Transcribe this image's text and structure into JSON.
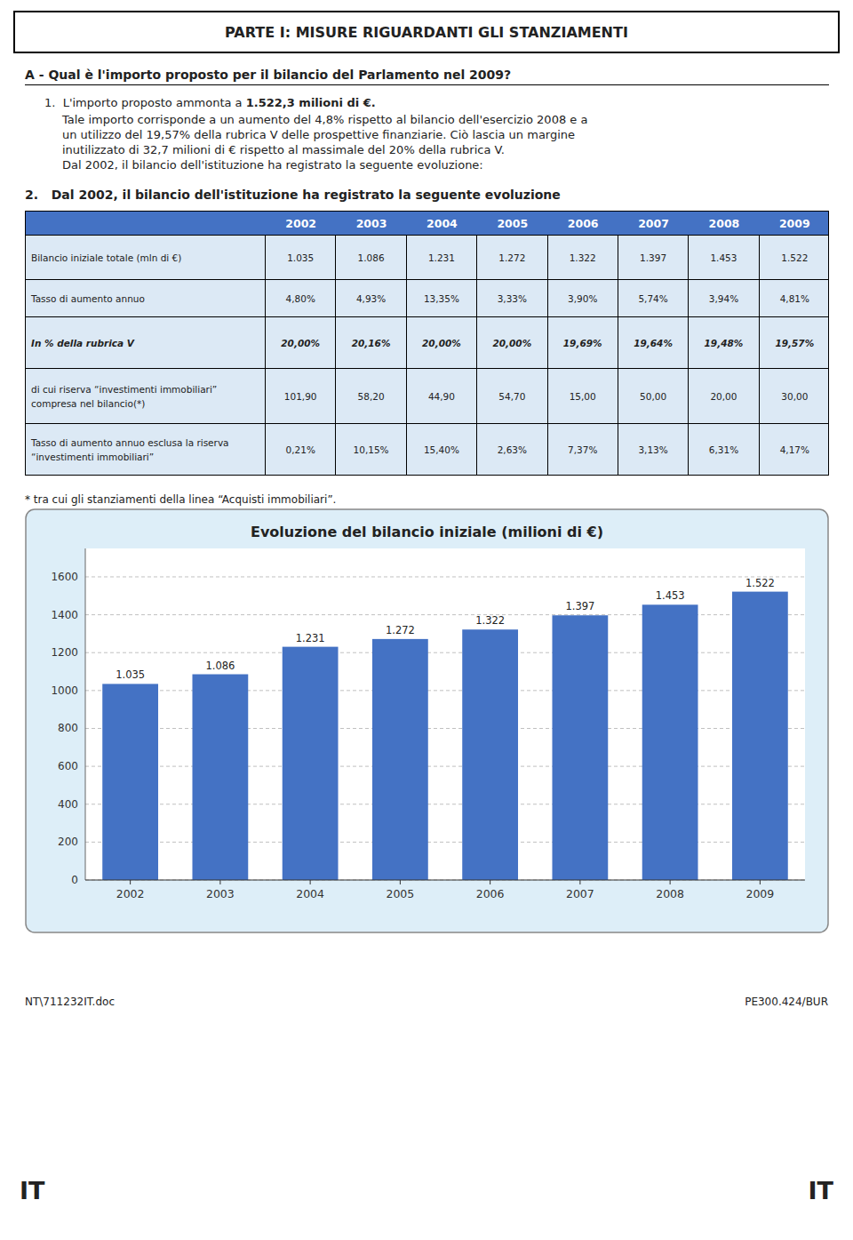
{
  "chart_data": {
    "type": "bar",
    "title": "Evoluzione del bilancio iniziale (milioni di €)",
    "categories": [
      "2002",
      "2003",
      "2004",
      "2005",
      "2006",
      "2007",
      "2008",
      "2009"
    ],
    "values": [
      1035,
      1086,
      1231,
      1272,
      1322,
      1397,
      1453,
      1522
    ],
    "value_labels": [
      "1.035",
      "1.086",
      "1.231",
      "1.272",
      "1.322",
      "1.397",
      "1.453",
      "1.522"
    ],
    "data_labels": true,
    "color": "#4472C4",
    "ylim": [
      0,
      1750
    ],
    "yticks": [
      0,
      200,
      400,
      600,
      800,
      1000,
      1200,
      1400,
      1600
    ],
    "grid": true
  },
  "document": {
    "title_box": "PARTE I: MISURE RIGUARDANTI GLI STANZIAMENTI",
    "section_a_title": "A - Qual è l'importo proposto per il bilancio del Parlamento nel 2009?",
    "para1_normal": "1.  L'importo proposto ammonta a ",
    "para1_bold": "1.522,3 milioni di €.",
    "para2_lines": [
      "Tale importo corrisponde a un aumento del 4,8% rispetto al bilancio dell'esercizio 2008 e a",
      "un utilizzo del 19,57% della rubrica V delle prospettive finanziarie. Ciò lascia un margine",
      "inutilizzato di 32,7 milioni di € rispetto al massimale del 20% della rubrica V.",
      "Dal 2002, il bilancio dell'istituzione ha registrato la seguente evoluzione:"
    ],
    "section2_title": "2.   Dal 2002, il bilancio dell'istituzione ha registrato la seguente evoluzione",
    "table": {
      "header_color": "#4472C4",
      "header_text_color": "#ffffff",
      "row_color": "#dce9f5",
      "years": [
        "2002",
        "2003",
        "2004",
        "2005",
        "2006",
        "2007",
        "2008",
        "2009"
      ],
      "rows": [
        {
          "label": [
            "Bilancio iniziale totale (mln di €)"
          ],
          "values": [
            "1.035",
            "1.086",
            "1.231",
            "1.272",
            "1.322",
            "1.397",
            "1.453",
            "1.522"
          ]
        },
        {
          "label": [
            "Tasso di aumento annuo"
          ],
          "values": [
            "4,80%",
            "4,93%",
            "13,35%",
            "3,33%",
            "3,90%",
            "5,74%",
            "3,94%",
            "4,81%"
          ]
        },
        {
          "label": [
            "In % della rubrica V"
          ],
          "values": [
            "20,00%",
            "20,16%",
            "20,00%",
            "20,00%",
            "19,69%",
            "19,64%",
            "19,48%",
            "19,57%"
          ]
        },
        {
          "label": [
            "di cui riserva “investimenti immobiliari”",
            "compresa nel bilancio(*)"
          ],
          "values": [
            "101,90",
            "58,20",
            "44,90",
            "54,70",
            "15,00",
            "50,00",
            "20,00",
            "30,00"
          ]
        },
        {
          "label": [
            "Tasso di aumento annuo esclusa la riserva",
            "“investimenti immobiliari”"
          ],
          "values": [
            "0,21%",
            "10,15%",
            "15,40%",
            "2,63%",
            "7,37%",
            "3,13%",
            "6,31%",
            "4,17%"
          ]
        }
      ]
    },
    "footnote": "* tra cui gli stanziamenti della linea “Acquisti immobiliari”.",
    "chart_box_color": "#ddeef8",
    "footer_left": "NT\\711232IT.doc",
    "footer_right": "PE300.424/BUR",
    "footer_it": "IT"
  }
}
